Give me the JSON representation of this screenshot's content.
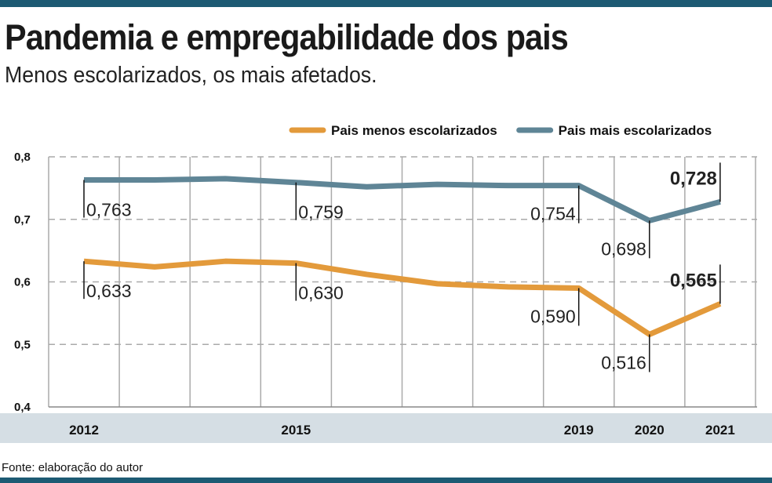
{
  "title": "Pandemia e empregabilidade dos pais",
  "subtitle": "Menos escolarizados, os mais afetados.",
  "source": "Fonte: elaboração do autor",
  "chart_data": {
    "type": "line",
    "x": [
      2012,
      2013,
      2014,
      2015,
      2016,
      2017,
      2018,
      2019,
      2020,
      2021
    ],
    "x_tick_labels": [
      "2012",
      "2015",
      "2019",
      "2020",
      "2021"
    ],
    "y_ticks": [
      "0,4",
      "0,5",
      "0,6",
      "0,7",
      "0,8"
    ],
    "ylim": [
      0.4,
      0.8
    ],
    "grid": true,
    "legend_placement": "top-right",
    "series": [
      {
        "name": "Pais menos escolarizados",
        "color": "#e39a3b",
        "values": [
          0.633,
          0.624,
          0.633,
          0.63,
          0.612,
          0.597,
          0.592,
          0.59,
          0.516,
          0.565
        ],
        "labels": {
          "2012": "0,633",
          "2015": "0,630",
          "2019": "0,590",
          "2020": "0,516",
          "2021": "0,565"
        }
      },
      {
        "name": "Pais mais escolarizados",
        "color": "#5f8596",
        "values": [
          0.763,
          0.763,
          0.765,
          0.759,
          0.752,
          0.756,
          0.754,
          0.754,
          0.698,
          0.728
        ],
        "labels": {
          "2012": "0,763",
          "2015": "0,759",
          "2019": "0,754",
          "2020": "0,698",
          "2021": "0,728"
        }
      }
    ]
  }
}
